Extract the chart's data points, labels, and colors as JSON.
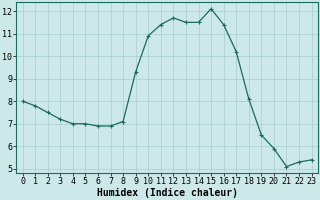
{
  "x": [
    0,
    1,
    2,
    3,
    4,
    5,
    6,
    7,
    8,
    9,
    10,
    11,
    12,
    13,
    14,
    15,
    16,
    17,
    18,
    19,
    20,
    21,
    22,
    23
  ],
  "y": [
    8.0,
    7.8,
    7.5,
    7.2,
    7.0,
    7.0,
    6.9,
    6.9,
    7.1,
    9.3,
    10.9,
    11.4,
    11.7,
    11.5,
    11.5,
    12.1,
    11.4,
    10.2,
    8.1,
    6.5,
    5.9,
    5.1,
    5.3,
    5.4
  ],
  "xlabel": "Humidex (Indice chaleur)",
  "xlim_min": -0.5,
  "xlim_max": 23.5,
  "ylim_min": 4.8,
  "ylim_max": 12.4,
  "yticks": [
    5,
    6,
    7,
    8,
    9,
    10,
    11,
    12
  ],
  "xticks": [
    0,
    1,
    2,
    3,
    4,
    5,
    6,
    7,
    8,
    9,
    10,
    11,
    12,
    13,
    14,
    15,
    16,
    17,
    18,
    19,
    20,
    21,
    22,
    23
  ],
  "line_color": "#1a6b5a",
  "marker": "+",
  "marker_size": 3,
  "bg_color": "#cce8e8",
  "grid_color": "#aacece",
  "axis_fontsize": 7,
  "tick_fontsize": 6,
  "spine_color": "#1a6b5a"
}
